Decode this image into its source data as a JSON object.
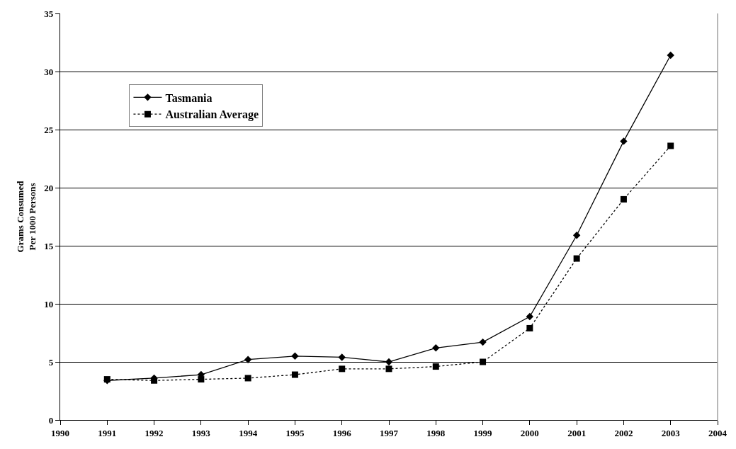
{
  "chart_data": {
    "type": "line",
    "ylabel": "Grams Consumed\nPer 1000 Persons",
    "x": [
      1991,
      1992,
      1993,
      1994,
      1995,
      1996,
      1997,
      1998,
      1999,
      2000,
      2001,
      2002,
      2003
    ],
    "xlim": [
      1990,
      2004
    ],
    "xticks": [
      1990,
      1991,
      1992,
      1993,
      1994,
      1995,
      1996,
      1997,
      1998,
      1999,
      2000,
      2001,
      2002,
      2003,
      2004
    ],
    "ylim": [
      0,
      35
    ],
    "yticks": [
      0,
      5,
      10,
      15,
      20,
      25,
      30,
      35
    ],
    "grid": "y",
    "legend": "top left",
    "series": [
      {
        "name": "Tasmania",
        "color": "#000000",
        "marker": "diamond",
        "line_style": "solid",
        "values": [
          3.4,
          3.6,
          3.9,
          5.2,
          5.5,
          5.4,
          5.0,
          6.2,
          6.7,
          8.9,
          15.9,
          24.0,
          31.4
        ]
      },
      {
        "name": "Australian Average",
        "color": "#000000",
        "marker": "square",
        "line_style": "dotted",
        "values": [
          3.5,
          3.4,
          3.5,
          3.6,
          3.9,
          4.4,
          4.4,
          4.6,
          5.0,
          7.9,
          13.9,
          19.0,
          23.6
        ]
      }
    ]
  }
}
